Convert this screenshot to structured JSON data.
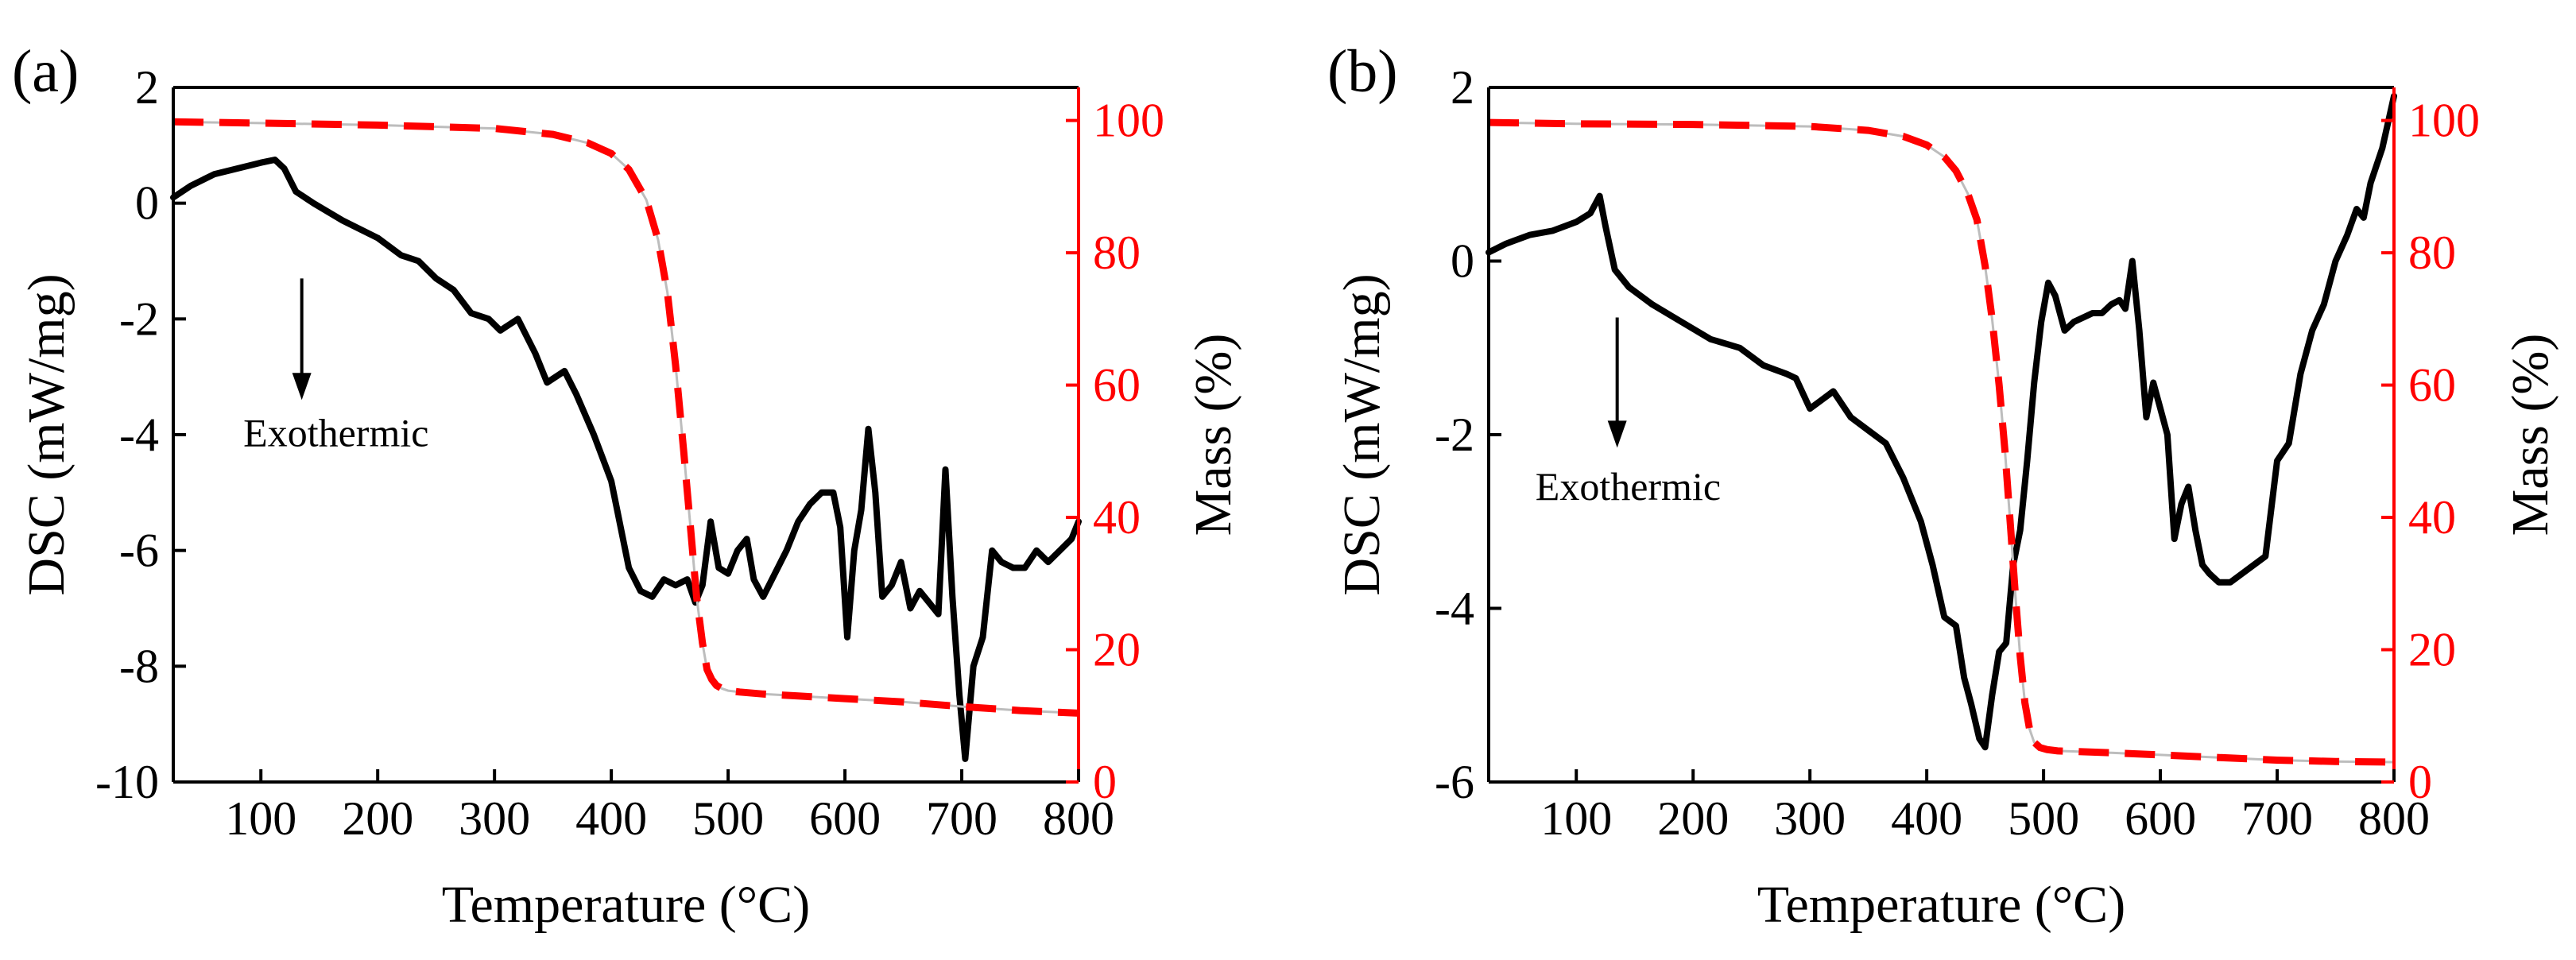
{
  "colors": {
    "dsc": "#000000",
    "mass": "#ff0000",
    "mass_axis": "#ff0000",
    "frame": "#000000"
  },
  "chart_data": [
    {
      "type": "line",
      "panel_label": "(a)",
      "xlabel": "Temperature (°C)",
      "ylabel": "DSC (mW/mg)",
      "y2label": "Mass (%)",
      "xlim": [
        25,
        800
      ],
      "ylim": [
        -10,
        2
      ],
      "y2lim": [
        0,
        105
      ],
      "xticks": [
        100,
        200,
        300,
        400,
        500,
        600,
        700,
        800
      ],
      "yticks": [
        -10,
        -8,
        -6,
        -4,
        -2,
        0,
        2
      ],
      "y2ticks": [
        0,
        20,
        40,
        60,
        80,
        100
      ],
      "annotation": {
        "text": "Exothermic",
        "arrow_x": 135,
        "arrow_from_y": -1.3,
        "arrow_to_y": -3.4,
        "text_x": 85,
        "text_y": -4.2
      },
      "series": [
        {
          "name": "DSC",
          "axis": "left",
          "style": "solid",
          "x": [
            25,
            40,
            60,
            80,
            100,
            112,
            120,
            130,
            145,
            170,
            200,
            220,
            235,
            250,
            265,
            280,
            295,
            305,
            320,
            335,
            345,
            360,
            370,
            385,
            400,
            415,
            425,
            435,
            445,
            455,
            465,
            472,
            478,
            485,
            492,
            500,
            508,
            516,
            522,
            530,
            540,
            550,
            560,
            570,
            580,
            590,
            596,
            602,
            608,
            614,
            620,
            626,
            632,
            640,
            648,
            656,
            664,
            672,
            680,
            686,
            692,
            698,
            703,
            710,
            718,
            726,
            734,
            744,
            754,
            764,
            774,
            784,
            794,
            800
          ],
          "y": [
            0.1,
            0.3,
            0.5,
            0.6,
            0.7,
            0.75,
            0.6,
            0.2,
            0.0,
            -0.3,
            -0.6,
            -0.9,
            -1.0,
            -1.3,
            -1.5,
            -1.9,
            -2.0,
            -2.2,
            -2.0,
            -2.6,
            -3.1,
            -2.9,
            -3.3,
            -4.0,
            -4.8,
            -6.3,
            -6.7,
            -6.8,
            -6.5,
            -6.6,
            -6.5,
            -6.9,
            -6.6,
            -5.5,
            -6.3,
            -6.4,
            -6.0,
            -5.8,
            -6.5,
            -6.8,
            -6.4,
            -6.0,
            -5.5,
            -5.2,
            -5.0,
            -5.0,
            -5.6,
            -7.5,
            -6.0,
            -5.3,
            -3.9,
            -5.0,
            -6.8,
            -6.6,
            -6.2,
            -7.0,
            -6.7,
            -6.9,
            -7.1,
            -4.6,
            -6.8,
            -8.5,
            -9.6,
            -8.0,
            -7.5,
            -6.0,
            -6.2,
            -6.3,
            -6.3,
            -6.0,
            -6.2,
            -6.0,
            -5.8,
            -5.5
          ]
        },
        {
          "name": "Mass",
          "axis": "right",
          "style": "dashed",
          "x": [
            25,
            100,
            200,
            300,
            350,
            380,
            400,
            415,
            430,
            440,
            448,
            455,
            462,
            468,
            473,
            478,
            482,
            486,
            490,
            495,
            500,
            510,
            530,
            560,
            600,
            650,
            700,
            750,
            800
          ],
          "y": [
            99.8,
            99.6,
            99.3,
            98.8,
            97.9,
            96.6,
            95.0,
            92.6,
            88.0,
            82.0,
            74.0,
            63.0,
            50.0,
            38.0,
            28.0,
            21.0,
            17.0,
            15.5,
            14.6,
            14.1,
            13.8,
            13.6,
            13.3,
            13.0,
            12.6,
            12.1,
            11.4,
            10.8,
            10.4
          ]
        }
      ]
    },
    {
      "type": "line",
      "panel_label": "(b)",
      "xlabel": "Temperature (°C)",
      "ylabel": "DSC (mW/mg)",
      "y2label": "Mass (%)",
      "xlim": [
        25,
        800
      ],
      "ylim": [
        -6,
        2
      ],
      "y2lim": [
        0,
        105
      ],
      "xticks": [
        100,
        200,
        300,
        400,
        500,
        600,
        700,
        800
      ],
      "yticks": [
        -6,
        -4,
        -2,
        0,
        2
      ],
      "y2ticks": [
        0,
        20,
        40,
        60,
        80,
        100
      ],
      "annotation": {
        "text": "Exothermic",
        "arrow_x": 135,
        "arrow_from_y": -0.65,
        "arrow_to_y": -2.15,
        "text_x": 65,
        "text_y": -2.75
      },
      "series": [
        {
          "name": "DSC",
          "axis": "left",
          "style": "solid",
          "x": [
            25,
            40,
            60,
            80,
            100,
            112,
            120,
            125,
            133,
            145,
            165,
            190,
            215,
            240,
            260,
            270,
            280,
            288,
            300,
            310,
            320,
            335,
            350,
            365,
            380,
            395,
            405,
            415,
            425,
            432,
            438,
            445,
            450,
            456,
            462,
            468,
            474,
            480,
            486,
            492,
            498,
            504,
            510,
            518,
            526,
            534,
            542,
            550,
            558,
            565,
            570,
            576,
            582,
            588,
            594,
            600,
            606,
            612,
            618,
            624,
            630,
            636,
            642,
            650,
            660,
            670,
            680,
            690,
            700,
            710,
            720,
            730,
            740,
            750,
            760,
            768,
            774,
            780,
            790,
            800
          ],
          "y": [
            0.1,
            0.2,
            0.3,
            0.35,
            0.45,
            0.55,
            0.75,
            0.4,
            -0.1,
            -0.3,
            -0.5,
            -0.7,
            -0.9,
            -1.0,
            -1.2,
            -1.25,
            -1.3,
            -1.35,
            -1.7,
            -1.6,
            -1.5,
            -1.8,
            -1.95,
            -2.1,
            -2.5,
            -3.0,
            -3.5,
            -4.1,
            -4.2,
            -4.8,
            -5.1,
            -5.5,
            -5.6,
            -5.0,
            -4.5,
            -4.4,
            -3.5,
            -3.1,
            -2.3,
            -1.4,
            -0.7,
            -0.25,
            -0.4,
            -0.8,
            -0.7,
            -0.65,
            -0.6,
            -0.6,
            -0.5,
            -0.45,
            -0.55,
            0.0,
            -0.8,
            -1.8,
            -1.4,
            -1.7,
            -2.0,
            -3.2,
            -2.8,
            -2.6,
            -3.1,
            -3.5,
            -3.6,
            -3.7,
            -3.7,
            -3.6,
            -3.5,
            -3.4,
            -2.3,
            -2.1,
            -1.3,
            -0.8,
            -0.5,
            0.0,
            0.3,
            0.6,
            0.5,
            0.9,
            1.3,
            1.9
          ]
        },
        {
          "name": "Mass",
          "axis": "right",
          "style": "dashed",
          "x": [
            25,
            100,
            200,
            300,
            350,
            380,
            400,
            415,
            425,
            435,
            443,
            450,
            456,
            462,
            467,
            472,
            476,
            480,
            484,
            488,
            492,
            497,
            503,
            512,
            530,
            560,
            600,
            650,
            700,
            750,
            800
          ],
          "y": [
            99.7,
            99.5,
            99.4,
            99.1,
            98.5,
            97.6,
            96.3,
            94.5,
            92.4,
            89.0,
            85.0,
            78.0,
            70.0,
            60.0,
            50.0,
            38.0,
            28.0,
            19.0,
            12.0,
            8.0,
            6.0,
            5.2,
            4.9,
            4.7,
            4.6,
            4.4,
            4.1,
            3.7,
            3.3,
            3.1,
            3.0
          ]
        }
      ]
    }
  ]
}
